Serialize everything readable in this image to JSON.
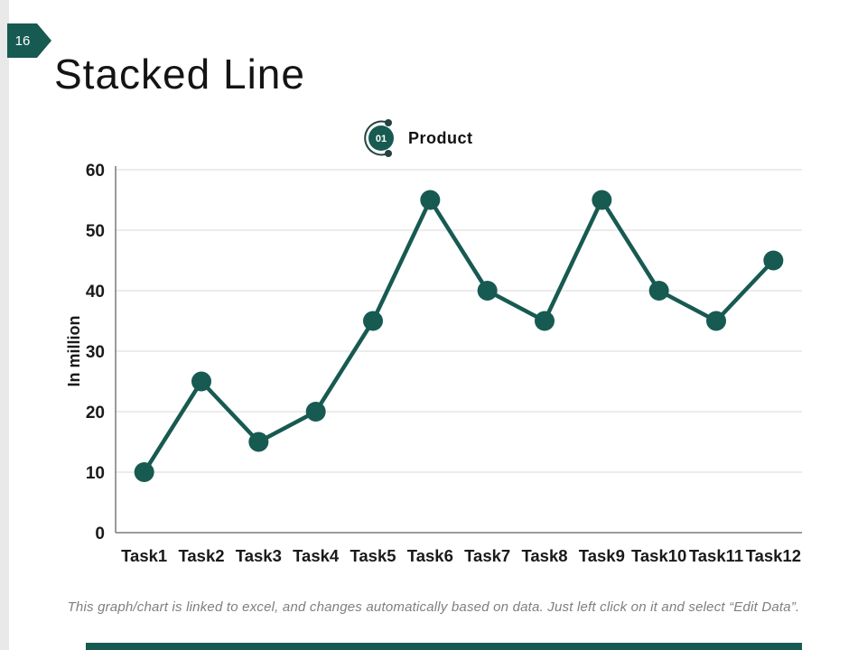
{
  "page": {
    "number": "16",
    "title": "Stacked Line",
    "footer": "This graph/chart is linked to excel, and changes automatically based on data. Just left click on it and select “Edit Data”."
  },
  "legend": {
    "badge": "01",
    "label": "Product"
  },
  "chart_data": {
    "type": "line",
    "categories": [
      "Task1",
      "Task2",
      "Task3",
      "Task4",
      "Task5",
      "Task6",
      "Task7",
      "Task8",
      "Task9",
      "Task10",
      "Task11",
      "Task12"
    ],
    "series": [
      {
        "name": "Product",
        "values": [
          10,
          25,
          15,
          20,
          35,
          55,
          40,
          35,
          55,
          40,
          35,
          45
        ]
      }
    ],
    "title": "",
    "xlabel": "",
    "ylabel": "In million",
    "ylim": [
      0,
      60
    ],
    "ytick_step": 10,
    "grid": true,
    "legend_position": "top-center"
  },
  "colors": {
    "accent": "#175A52",
    "legend_arc": "#24433F",
    "gridline": "#D9D9D9",
    "axis": "#7A7A7A",
    "tick_text": "#1A1A1A",
    "title_text": "#141414",
    "footer_text": "#7F7F7F",
    "edge_strip": "#E9E9E9"
  }
}
